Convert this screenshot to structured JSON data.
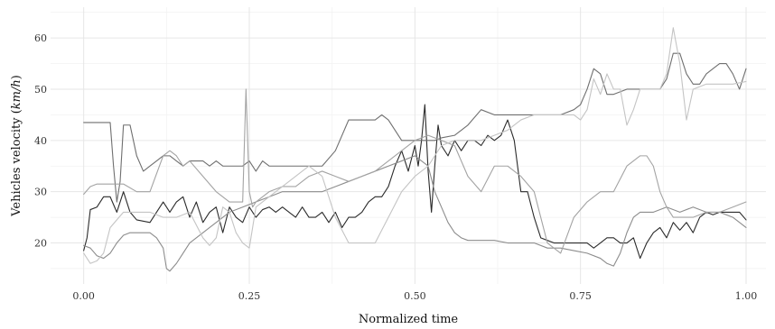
{
  "chart_data": {
    "type": "line",
    "title": "",
    "xlabel": "Normalized time",
    "ylabel_parts": [
      "Vehicles velocity (",
      "km/h",
      ")"
    ],
    "xlim": [
      -0.05,
      1.03
    ],
    "ylim": [
      12,
      66
    ],
    "xticks": [
      0.0,
      0.25,
      0.5,
      0.75,
      1.0
    ],
    "xtick_labels": [
      "0.00",
      "0.25",
      "0.50",
      "0.75",
      "1.00"
    ],
    "yticks": [
      20,
      30,
      40,
      50,
      60
    ],
    "ytick_labels": [
      "20",
      "30",
      "40",
      "50",
      "60"
    ],
    "grid": true,
    "legend": "none",
    "series": [
      {
        "color": "#2b2b2b",
        "x": [
          0.0,
          0.005,
          0.01,
          0.02,
          0.03,
          0.04,
          0.05,
          0.06,
          0.07,
          0.08,
          0.1,
          0.11,
          0.12,
          0.125,
          0.13,
          0.14,
          0.15,
          0.16,
          0.17,
          0.18,
          0.19,
          0.2,
          0.21,
          0.22,
          0.23,
          0.24,
          0.25,
          0.26,
          0.27,
          0.28,
          0.29,
          0.3,
          0.31,
          0.32,
          0.33,
          0.34,
          0.35,
          0.36,
          0.37,
          0.38,
          0.39,
          0.4,
          0.41,
          0.42,
          0.43,
          0.44,
          0.45,
          0.46,
          0.47,
          0.48,
          0.49,
          0.5,
          0.505,
          0.51,
          0.515,
          0.52,
          0.525,
          0.53,
          0.535,
          0.54,
          0.55,
          0.56,
          0.57,
          0.58,
          0.59,
          0.6,
          0.61,
          0.62,
          0.63,
          0.64,
          0.65,
          0.66,
          0.67,
          0.68,
          0.69,
          0.7,
          0.71,
          0.72,
          0.73,
          0.74,
          0.75,
          0.76,
          0.77,
          0.78,
          0.79,
          0.8,
          0.81,
          0.82,
          0.83,
          0.84,
          0.85,
          0.86,
          0.87,
          0.88,
          0.89,
          0.9,
          0.91,
          0.92,
          0.93,
          0.94,
          0.95,
          0.96,
          0.97,
          0.98,
          0.99,
          1.0
        ],
        "values": [
          18.5,
          21,
          26.5,
          27,
          29,
          29,
          26,
          30,
          26,
          24.5,
          24,
          26,
          28,
          27,
          26,
          28,
          29,
          25,
          28,
          24,
          26,
          27,
          22,
          27,
          25,
          24,
          27,
          25,
          26.5,
          27,
          26,
          27,
          26,
          25,
          27,
          25,
          25,
          26,
          24,
          26,
          23,
          25,
          25,
          26,
          28,
          29,
          29,
          31,
          35,
          38,
          34,
          39,
          35,
          40,
          47,
          34,
          26,
          35,
          43,
          39,
          37,
          40,
          38,
          40,
          40,
          39,
          41,
          40,
          41,
          44,
          40,
          30,
          30,
          25,
          21,
          20.5,
          20,
          20,
          20,
          20,
          20,
          20,
          19,
          20,
          21,
          21,
          20,
          20,
          21,
          17,
          20,
          22,
          23,
          21,
          24,
          22.5,
          24,
          22,
          25,
          26,
          25.5,
          26,
          26,
          26,
          26,
          24.5
        ]
      },
      {
        "color": "#6f6f6f",
        "x": [
          0.0,
          0.03,
          0.04,
          0.045,
          0.05,
          0.055,
          0.06,
          0.07,
          0.08,
          0.09,
          0.1,
          0.11,
          0.12,
          0.13,
          0.14,
          0.15,
          0.16,
          0.17,
          0.18,
          0.19,
          0.2,
          0.21,
          0.22,
          0.23,
          0.24,
          0.25,
          0.26,
          0.27,
          0.28,
          0.3,
          0.32,
          0.34,
          0.36,
          0.38,
          0.4,
          0.42,
          0.44,
          0.45,
          0.46,
          0.47,
          0.48,
          0.5,
          0.52,
          0.53,
          0.54,
          0.56,
          0.58,
          0.6,
          0.62,
          0.64,
          0.66,
          0.68,
          0.7,
          0.72,
          0.74,
          0.75,
          0.76,
          0.77,
          0.78,
          0.79,
          0.8,
          0.82,
          0.84,
          0.86,
          0.87,
          0.88,
          0.89,
          0.9,
          0.91,
          0.92,
          0.93,
          0.94,
          0.95,
          0.96,
          0.97,
          0.98,
          0.99,
          1.0
        ],
        "values": [
          43.5,
          43.5,
          43.5,
          35,
          28,
          32,
          43,
          43,
          37,
          34,
          35,
          36,
          37,
          37,
          36,
          35,
          36,
          36,
          36,
          35,
          36,
          35,
          35,
          35,
          35,
          36,
          34,
          36,
          35,
          35,
          35,
          35,
          35,
          38,
          44,
          44,
          44,
          45,
          44,
          42,
          40,
          40,
          40,
          40,
          40.5,
          41,
          43,
          46,
          45,
          45,
          45,
          45,
          45,
          45,
          46,
          47,
          50,
          54,
          53,
          49,
          49,
          50,
          50,
          50,
          50,
          52,
          57,
          57,
          53,
          51,
          51,
          53,
          54,
          55,
          55,
          53,
          50,
          54
        ]
      },
      {
        "color": "#8c8c8c",
        "x": [
          0.0,
          0.01,
          0.02,
          0.03,
          0.04,
          0.05,
          0.06,
          0.07,
          0.08,
          0.09,
          0.1,
          0.11,
          0.12,
          0.125,
          0.13,
          0.14,
          0.15,
          0.16,
          0.18,
          0.2,
          0.22,
          0.24,
          0.26,
          0.28,
          0.3,
          0.32,
          0.34,
          0.36,
          0.38,
          0.4,
          0.42,
          0.44,
          0.46,
          0.48,
          0.5,
          0.51,
          0.52,
          0.53,
          0.54,
          0.55,
          0.56,
          0.57,
          0.58,
          0.6,
          0.62,
          0.64,
          0.66,
          0.68,
          0.7,
          0.72,
          0.74,
          0.76,
          0.78,
          0.79,
          0.8,
          0.81,
          0.82,
          0.83,
          0.84,
          0.86,
          0.88,
          0.9,
          0.92,
          0.94,
          0.96,
          0.98,
          1.0
        ],
        "values": [
          19.5,
          19,
          17.5,
          17,
          18,
          20,
          21.5,
          22,
          22,
          22,
          22,
          21,
          19,
          15,
          14.5,
          16,
          18,
          20,
          22,
          24,
          26,
          27,
          28,
          29,
          30,
          30,
          30,
          30,
          31,
          32,
          33,
          34,
          35,
          36,
          37,
          36,
          35,
          30,
          27,
          24,
          22,
          21,
          20.5,
          20.5,
          20.5,
          20,
          20,
          20,
          19,
          19,
          18.5,
          18,
          17,
          16,
          15.5,
          18,
          22,
          25,
          26,
          26,
          27,
          26,
          27,
          26,
          26,
          25,
          23
        ]
      },
      {
        "color": "#a3a3a3",
        "x": [
          0.0,
          0.01,
          0.02,
          0.04,
          0.06,
          0.08,
          0.1,
          0.12,
          0.13,
          0.14,
          0.15,
          0.16,
          0.18,
          0.2,
          0.22,
          0.24,
          0.245,
          0.25,
          0.255,
          0.26,
          0.28,
          0.3,
          0.32,
          0.34,
          0.36,
          0.38,
          0.4,
          0.42,
          0.44,
          0.46,
          0.48,
          0.5,
          0.52,
          0.54,
          0.56,
          0.58,
          0.6,
          0.62,
          0.64,
          0.66,
          0.68,
          0.7,
          0.72,
          0.74,
          0.76,
          0.78,
          0.8,
          0.82,
          0.84,
          0.85,
          0.86,
          0.87,
          0.88,
          0.89,
          0.9,
          0.92,
          0.94,
          0.96,
          0.98,
          1.0
        ],
        "values": [
          29.5,
          31,
          31.5,
          31.5,
          31.5,
          30,
          30,
          37,
          38,
          37,
          35,
          36,
          33,
          30,
          28,
          28,
          50,
          30,
          27,
          28,
          30,
          31,
          31,
          33,
          34,
          33,
          32,
          33,
          34,
          36,
          38,
          40,
          41,
          40,
          39,
          33,
          30,
          35,
          35,
          33,
          30,
          20,
          18,
          25,
          28,
          30,
          30,
          35,
          37,
          37,
          35,
          30,
          27,
          25,
          25,
          25,
          26,
          26,
          27,
          28
        ]
      },
      {
        "color": "#c4c4c4",
        "x": [
          0.0,
          0.01,
          0.02,
          0.03,
          0.04,
          0.06,
          0.08,
          0.1,
          0.12,
          0.14,
          0.16,
          0.18,
          0.19,
          0.2,
          0.21,
          0.22,
          0.23,
          0.24,
          0.25,
          0.26,
          0.28,
          0.3,
          0.32,
          0.34,
          0.36,
          0.38,
          0.4,
          0.42,
          0.44,
          0.46,
          0.48,
          0.5,
          0.52,
          0.54,
          0.56,
          0.58,
          0.6,
          0.62,
          0.64,
          0.66,
          0.68,
          0.7,
          0.72,
          0.74,
          0.75,
          0.76,
          0.77,
          0.78,
          0.79,
          0.8,
          0.81,
          0.82,
          0.83,
          0.84,
          0.85,
          0.86,
          0.87,
          0.88,
          0.89,
          0.9,
          0.91,
          0.92,
          0.94,
          0.96,
          0.98,
          1.0
        ],
        "values": [
          18,
          16,
          16.5,
          18,
          23,
          26,
          26,
          26,
          25,
          25,
          26,
          21,
          19.5,
          21,
          27,
          26,
          22,
          20,
          19,
          27,
          29,
          31,
          33,
          35,
          33,
          25,
          20,
          20,
          20,
          25,
          30,
          33,
          35,
          39,
          40,
          40,
          40,
          41,
          42,
          44,
          45,
          45,
          45,
          45,
          44,
          46,
          52,
          49,
          53,
          50,
          50,
          43,
          46,
          50,
          50,
          50,
          50,
          53,
          62,
          55,
          44,
          50,
          51,
          51,
          51,
          51.5
        ]
      }
    ]
  }
}
